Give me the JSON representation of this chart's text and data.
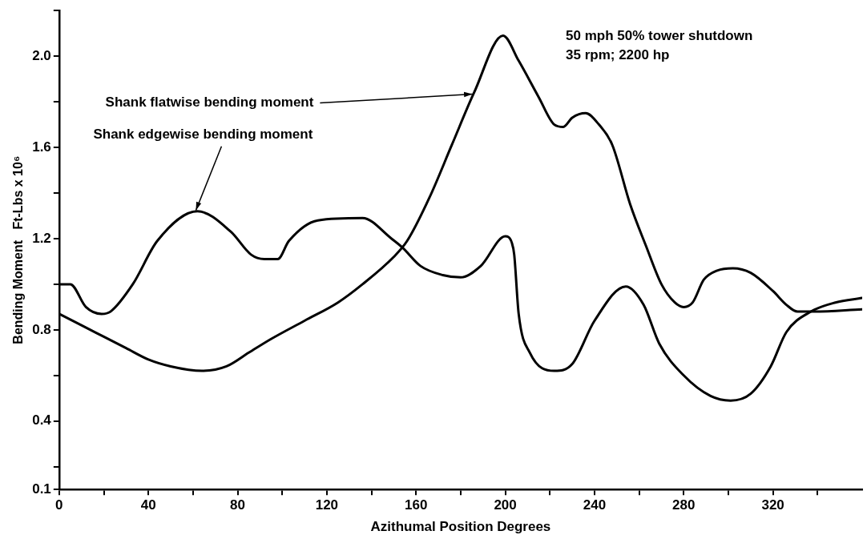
{
  "chart_data": {
    "type": "line",
    "xlabel": "Azithumal Position Degrees",
    "ylabel": "Bending Moment   Ft-Lbs x 10⁶",
    "xlim": [
      0,
      360
    ],
    "xticks": [
      0,
      {
        "value": 20,
        "label": null
      },
      40,
      {
        "value": 60,
        "label": null
      },
      80,
      {
        "value": 100,
        "label": null
      },
      120,
      {
        "value": 140,
        "label": null
      },
      160,
      {
        "value": 180,
        "label": null
      },
      200,
      {
        "value": 220,
        "label": null
      },
      240,
      {
        "value": 260,
        "label": null
      },
      280,
      {
        "value": 300,
        "label": null
      },
      320,
      {
        "value": 340,
        "label": null
      }
    ],
    "ylim": [
      0.1,
      2.2
    ],
    "yticks": [
      0.1,
      {
        "value": 0.2,
        "label": null
      },
      0.4,
      {
        "value": 0.6,
        "label": null
      },
      0.8,
      {
        "value": 1.0,
        "label": null
      },
      1.2,
      {
        "value": 1.4,
        "label": null
      },
      1.6,
      {
        "value": 1.8,
        "label": null
      },
      {
        "value": 2,
        "label": "2.0"
      },
      {
        "value": 2.2,
        "label": null
      }
    ],
    "grid": false,
    "legend": false,
    "marker": "none",
    "line_style": "solid",
    "series": [
      {
        "color": "#000000",
        "x": [
          0,
          10,
          20,
          30,
          40,
          50,
          64,
          75,
          85,
          95,
          110,
          125,
          136,
          150,
          156,
          166,
          176,
          186,
          199,
          206,
          215,
          222,
          226,
          230,
          236,
          242,
          248,
          256,
          263,
          270,
          276,
          280,
          284,
          289,
          295,
          302,
          310,
          320,
          326,
          331,
          337,
          360
        ],
        "values": [
          0.87,
          0.82,
          0.77,
          0.72,
          0.67,
          0.64,
          0.62,
          0.64,
          0.7,
          0.76,
          0.84,
          0.92,
          1.0,
          1.12,
          1.19,
          1.38,
          1.61,
          1.84,
          2.09,
          1.98,
          1.82,
          1.7,
          1.69,
          1.73,
          1.75,
          1.7,
          1.61,
          1.35,
          1.17,
          1.0,
          0.92,
          0.9,
          0.92,
          1.02,
          1.06,
          1.07,
          1.05,
          0.97,
          0.91,
          0.88,
          0.88,
          0.89
        ]
      },
      {
        "color": "#000000",
        "x": [
          0,
          5,
          12,
          19,
          23,
          33,
          44,
          62,
          77,
          86,
          92,
          98,
          103,
          116,
          136,
          149,
          154,
          162,
          172,
          180,
          189,
          200,
          203,
          204,
          206,
          211,
          222,
          230,
          240,
          254,
          262,
          269,
          280,
          292,
          301,
          310,
          319,
          326,
          337,
          348,
          360
        ],
        "values": [
          1.0,
          1.0,
          0.9,
          0.87,
          0.88,
          1.0,
          1.19,
          1.32,
          1.23,
          1.13,
          1.11,
          1.11,
          1.19,
          1.28,
          1.29,
          1.2,
          1.16,
          1.08,
          1.04,
          1.03,
          1.08,
          1.21,
          1.18,
          1.13,
          0.87,
          0.7,
          0.62,
          0.65,
          0.84,
          0.99,
          0.91,
          0.74,
          0.6,
          0.51,
          0.49,
          0.52,
          0.64,
          0.79,
          0.88,
          0.92,
          0.94
        ]
      }
    ],
    "annotations": [
      {
        "text": "Shank flatwise bending moment",
        "x": 186,
        "y": 1.83
      },
      {
        "text": "Shank edgewise bending moment",
        "x": 62,
        "y": 1.32
      },
      "50 mph 50% tower shutdown\n35 rpm; 2200 hp"
    ]
  }
}
